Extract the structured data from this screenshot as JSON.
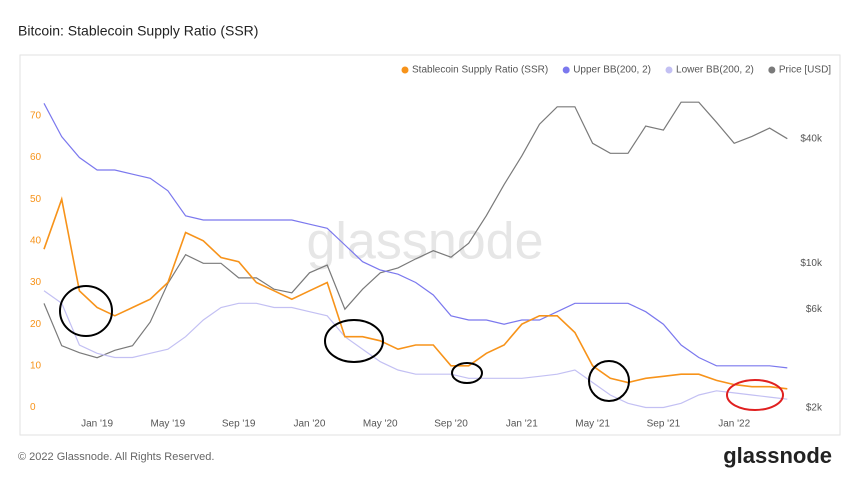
{
  "chart_data": {
    "type": "line",
    "title": "Bitcoin: Stablecoin Supply Ratio (SSR)",
    "watermark": "glassnode",
    "footer": "© 2022 Glassnode. All Rights Reserved.",
    "logo": "glassnode",
    "x": [
      "2018-10",
      "2018-11",
      "2018-12",
      "2019-01",
      "2019-02",
      "2019-03",
      "2019-04",
      "2019-05",
      "2019-06",
      "2019-07",
      "2019-08",
      "2019-09",
      "2019-10",
      "2019-11",
      "2019-12",
      "2020-01",
      "2020-02",
      "2020-03",
      "2020-04",
      "2020-05",
      "2020-06",
      "2020-07",
      "2020-08",
      "2020-09",
      "2020-10",
      "2020-11",
      "2020-12",
      "2021-01",
      "2021-02",
      "2021-03",
      "2021-04",
      "2021-05",
      "2021-06",
      "2021-07",
      "2021-08",
      "2021-09",
      "2021-10",
      "2021-11",
      "2021-12",
      "2022-01",
      "2022-02",
      "2022-03",
      "2022-04"
    ],
    "xlim": [
      "2018-10",
      "2022-05"
    ],
    "xticks": [
      {
        "value": "2019-01",
        "label": "Jan '19"
      },
      {
        "value": "2019-05",
        "label": "May '19"
      },
      {
        "value": "2019-09",
        "label": "Sep '19"
      },
      {
        "value": "2020-01",
        "label": "Jan '20"
      },
      {
        "value": "2020-05",
        "label": "May '20"
      },
      {
        "value": "2020-09",
        "label": "Sep '20"
      },
      {
        "value": "2021-01",
        "label": "Jan '21"
      },
      {
        "value": "2021-05",
        "label": "May '21"
      },
      {
        "value": "2021-09",
        "label": "Sep '21"
      },
      {
        "value": "2022-01",
        "label": "Jan '22"
      }
    ],
    "ylim": [
      -3,
      75
    ],
    "yticks": [
      0,
      10,
      20,
      30,
      40,
      50,
      60,
      70
    ],
    "y2lim": [
      1750,
      65000
    ],
    "y2log": true,
    "y2ticks": [
      {
        "value": 2000,
        "label": "$2k"
      },
      {
        "value": 6000,
        "label": "$6k"
      },
      {
        "value": 10000,
        "label": "$10k"
      },
      {
        "value": 40000,
        "label": "$40k"
      }
    ],
    "series": [
      {
        "name": "Stablecoin Supply Ratio (SSR)",
        "color": "#f7931a",
        "values": [
          38,
          50,
          28,
          24,
          22,
          24,
          26,
          30,
          42,
          40,
          36,
          35,
          30,
          28,
          26,
          28,
          30,
          17,
          17,
          16,
          14,
          15,
          15,
          10,
          10,
          13,
          15,
          20,
          22,
          22,
          18,
          10,
          7,
          6,
          7,
          7.5,
          8,
          8,
          6.5,
          5.5,
          5,
          5,
          4.5
        ]
      },
      {
        "name": "Upper BB(200, 2)",
        "color": "#7b78ee",
        "values": [
          73,
          65,
          60,
          57,
          57,
          56,
          55,
          52,
          46,
          45,
          45,
          45,
          45,
          45,
          45,
          44,
          43,
          39,
          35,
          33,
          32,
          30,
          27,
          22,
          21,
          21,
          20,
          21,
          21,
          23,
          25,
          25,
          25,
          25,
          23,
          20,
          15,
          12,
          10,
          10,
          10,
          10,
          9.5
        ]
      },
      {
        "name": "Lower BB(200, 2)",
        "color": "#c3c0f3",
        "values": [
          28,
          25,
          15,
          13,
          12,
          12,
          13,
          14,
          17,
          21,
          24,
          25,
          25,
          24,
          24,
          23,
          22,
          17,
          14,
          11,
          9,
          8,
          8,
          8,
          7,
          7,
          7,
          7,
          7.5,
          8,
          9,
          6,
          3,
          1,
          0,
          0,
          1,
          3,
          4,
          3.5,
          3,
          2.5,
          2
        ]
      },
      {
        "name": "Price [USD]",
        "color": "#7a7a7a",
        "axis": "y2",
        "values": [
          6400,
          4000,
          3700,
          3500,
          3800,
          4000,
          5200,
          8000,
          11000,
          10000,
          10000,
          8500,
          8500,
          7500,
          7200,
          9000,
          9800,
          6000,
          7500,
          9000,
          9500,
          10500,
          11500,
          10700,
          12500,
          17000,
          24000,
          33000,
          47000,
          57000,
          57000,
          38000,
          34000,
          34000,
          46000,
          44000,
          60000,
          60000,
          48000,
          38000,
          41000,
          45000,
          40000
        ]
      }
    ]
  }
}
